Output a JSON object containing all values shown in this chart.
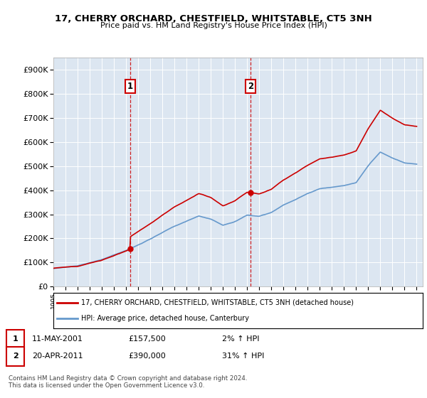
{
  "title": "17, CHERRY ORCHARD, CHESTFIELD, WHITSTABLE, CT5 3NH",
  "subtitle": "Price paid vs. HM Land Registry's House Price Index (HPI)",
  "y_ticks": [
    0,
    100000,
    200000,
    300000,
    400000,
    500000,
    600000,
    700000,
    800000,
    900000
  ],
  "y_tick_labels": [
    "£0",
    "£100K",
    "£200K",
    "£300K",
    "£400K",
    "£500K",
    "£600K",
    "£700K",
    "£800K",
    "£900K"
  ],
  "ylim": [
    0,
    950000
  ],
  "background_color": "#ffffff",
  "plot_bg_color": "#dce6f1",
  "grid_color": "#ffffff",
  "sale1_year": 2001.36,
  "sale1_price": 157500,
  "sale1_label": "1",
  "sale1_date": "11-MAY-2001",
  "sale1_price_str": "£157,500",
  "sale1_pct": "2% ↑ HPI",
  "sale2_year": 2011.29,
  "sale2_price": 390000,
  "sale2_label": "2",
  "sale2_date": "20-APR-2011",
  "sale2_price_str": "£390,000",
  "sale2_pct": "31% ↑ HPI",
  "line_color_red": "#cc0000",
  "line_color_blue": "#6699cc",
  "legend_label_red": "17, CHERRY ORCHARD, CHESTFIELD, WHITSTABLE, CT5 3NH (detached house)",
  "legend_label_blue": "HPI: Average price, detached house, Canterbury",
  "footer": "Contains HM Land Registry data © Crown copyright and database right 2024.\nThis data is licensed under the Open Government Licence v3.0."
}
